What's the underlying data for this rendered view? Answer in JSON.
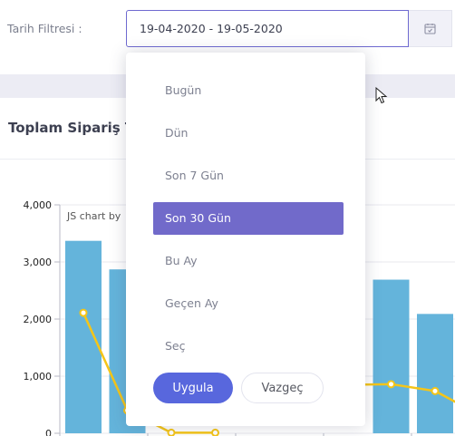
{
  "filter": {
    "label": "Tarih Filtresi :",
    "value": "19-04-2020 - 19-05-2020",
    "calendar_icon": "calendar-check-icon"
  },
  "card": {
    "title": "Toplam Sipariş Tu"
  },
  "chart_data": {
    "type": "bar",
    "watermark": "JS chart by",
    "yticks": [
      "4,000",
      "3,000",
      "2,000",
      "1,000",
      "0"
    ],
    "ylim": [
      0,
      4000
    ],
    "bar_color": "#64b4db",
    "line_color": "#f5c518",
    "bars": [
      3370,
      2870,
      0,
      0,
      0,
      0,
      0,
      2690,
      2090
    ],
    "line": [
      2110,
      400,
      10,
      10,
      null,
      null,
      850,
      860,
      740
    ]
  },
  "dropdown": {
    "items": [
      "Bugün",
      "Dün",
      "Son 7 Gün",
      "Son 30 Gün",
      "Bu Ay",
      "Geçen Ay",
      "Seç"
    ],
    "active_index": 3,
    "apply_label": "Uygula",
    "cancel_label": "Vazgeç"
  },
  "colors": {
    "accent": "#716aca",
    "apply": "#5867dd"
  }
}
